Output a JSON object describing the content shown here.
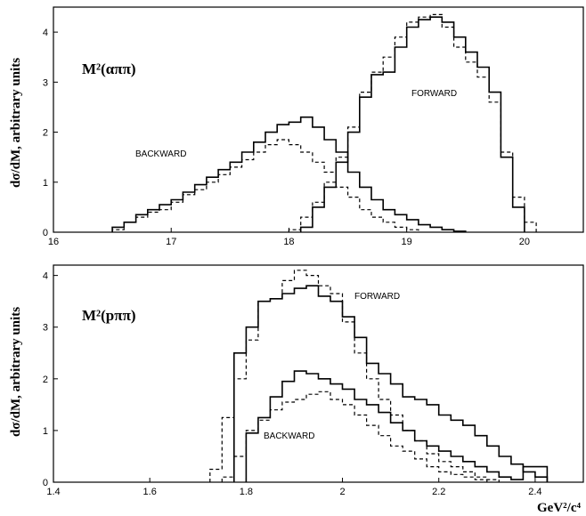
{
  "chart_data": [
    {
      "type": "step",
      "title": "M²(αππ)",
      "ylabel": "dσ/dM, arbitrary units",
      "xlim": [
        16,
        20.5
      ],
      "ylim": [
        0,
        4.5
      ],
      "xticks": [
        16,
        17,
        18,
        19,
        20
      ],
      "yticks": [
        0,
        1,
        2,
        3,
        4
      ],
      "annotations": [
        "BACKWARD",
        "FORWARD"
      ],
      "series": [
        {
          "name": "BACKWARD",
          "style": "solid",
          "x": [
            16.5,
            16.6,
            16.7,
            16.8,
            16.9,
            17.0,
            17.1,
            17.2,
            17.3,
            17.4,
            17.5,
            17.6,
            17.7,
            17.8,
            17.9,
            18.0,
            18.1,
            18.2,
            18.3,
            18.4,
            18.5,
            18.6,
            18.7,
            18.8,
            18.9,
            19.0,
            19.1,
            19.2,
            19.3,
            19.4,
            19.5
          ],
          "y": [
            0.1,
            0.2,
            0.35,
            0.45,
            0.55,
            0.65,
            0.8,
            0.95,
            1.1,
            1.25,
            1.4,
            1.6,
            1.8,
            2.0,
            2.15,
            2.2,
            2.3,
            2.1,
            1.85,
            1.6,
            1.2,
            0.9,
            0.65,
            0.45,
            0.35,
            0.25,
            0.15,
            0.1,
            0.05,
            0.02,
            0
          ]
        },
        {
          "name": "BACKWARD",
          "style": "dashed",
          "x": [
            16.5,
            16.6,
            16.7,
            16.8,
            16.9,
            17.0,
            17.1,
            17.2,
            17.3,
            17.4,
            17.5,
            17.6,
            17.7,
            17.8,
            17.9,
            18.0,
            18.1,
            18.2,
            18.3,
            18.4,
            18.5,
            18.6,
            18.7,
            18.8,
            18.9,
            19.0,
            19.1
          ],
          "y": [
            0.05,
            0.2,
            0.3,
            0.4,
            0.45,
            0.6,
            0.75,
            0.85,
            1.0,
            1.15,
            1.3,
            1.45,
            1.6,
            1.75,
            1.85,
            1.75,
            1.6,
            1.4,
            1.2,
            0.9,
            0.7,
            0.45,
            0.3,
            0.2,
            0.1,
            0.05,
            0
          ]
        },
        {
          "name": "FORWARD",
          "style": "solid",
          "x": [
            18.1,
            18.2,
            18.3,
            18.4,
            18.5,
            18.6,
            18.7,
            18.8,
            18.9,
            19.0,
            19.1,
            19.2,
            19.3,
            19.4,
            19.5,
            19.6,
            19.7,
            19.8,
            19.9,
            20.0
          ],
          "y": [
            0.1,
            0.5,
            0.9,
            1.4,
            2.0,
            2.7,
            3.15,
            3.2,
            3.7,
            4.1,
            4.25,
            4.3,
            4.2,
            3.9,
            3.6,
            3.3,
            2.8,
            1.5,
            0.5,
            0
          ]
        },
        {
          "name": "FORWARD",
          "style": "dashed",
          "x": [
            18.0,
            18.1,
            18.2,
            18.3,
            18.4,
            18.5,
            18.6,
            18.7,
            18.8,
            18.9,
            19.0,
            19.1,
            19.2,
            19.3,
            19.4,
            19.5,
            19.6,
            19.7,
            19.8,
            19.9,
            20.0,
            20.1
          ],
          "y": [
            0.05,
            0.3,
            0.6,
            1.0,
            1.5,
            2.1,
            2.8,
            3.2,
            3.5,
            3.9,
            4.2,
            4.3,
            4.35,
            4.1,
            3.7,
            3.4,
            3.1,
            2.6,
            1.6,
            0.7,
            0.2,
            0
          ]
        }
      ]
    },
    {
      "type": "step",
      "title": "M²(pππ)",
      "ylabel": "dσ/dM, arbitrary units",
      "xlabel": "GeV²/c⁴",
      "xlim": [
        1.4,
        2.5
      ],
      "ylim": [
        0,
        4.2
      ],
      "xticks": [
        1.4,
        1.6,
        1.8,
        2,
        2.2,
        2.4
      ],
      "yticks": [
        0,
        1,
        2,
        3,
        4
      ],
      "annotations": [
        "FORWARD",
        "BACKWARD"
      ],
      "series": [
        {
          "name": "FORWARD",
          "style": "solid",
          "x": [
            1.775,
            1.8,
            1.825,
            1.85,
            1.875,
            1.9,
            1.925,
            1.95,
            1.975,
            2.0,
            2.025,
            2.05,
            2.075,
            2.1,
            2.125,
            2.15,
            2.175,
            2.2,
            2.225,
            2.25,
            2.275,
            2.3,
            2.325,
            2.35,
            2.375,
            2.4,
            2.425
          ],
          "y": [
            2.5,
            3.0,
            3.5,
            3.55,
            3.65,
            3.75,
            3.8,
            3.6,
            3.5,
            3.2,
            2.8,
            2.3,
            2.1,
            1.9,
            1.65,
            1.6,
            1.5,
            1.3,
            1.2,
            1.1,
            0.9,
            0.7,
            0.5,
            0.35,
            0.2,
            0.1,
            0
          ]
        },
        {
          "name": "FORWARD",
          "style": "dashed",
          "x": [
            1.725,
            1.75,
            1.775,
            1.8,
            1.825,
            1.85,
            1.875,
            1.9,
            1.925,
            1.95,
            1.975,
            2.0,
            2.025,
            2.05,
            2.075,
            2.1,
            2.125,
            2.15,
            2.175,
            2.2,
            2.225,
            2.25,
            2.275,
            2.3,
            2.325
          ],
          "y": [
            0.25,
            1.25,
            2.0,
            2.75,
            3.5,
            3.55,
            3.9,
            4.1,
            4.0,
            3.8,
            3.65,
            3.1,
            2.5,
            2.0,
            1.6,
            1.3,
            1.0,
            0.8,
            0.55,
            0.4,
            0.3,
            0.2,
            0.1,
            0.05,
            0
          ]
        },
        {
          "name": "BACKWARD",
          "style": "solid",
          "x": [
            1.8,
            1.825,
            1.85,
            1.875,
            1.9,
            1.925,
            1.95,
            1.975,
            2.0,
            2.025,
            2.05,
            2.075,
            2.1,
            2.125,
            2.15,
            2.175,
            2.2,
            2.225,
            2.25,
            2.275,
            2.3,
            2.325,
            2.35,
            2.375,
            2.4,
            2.425
          ],
          "y": [
            0.95,
            1.25,
            1.65,
            1.95,
            2.15,
            2.1,
            2.0,
            1.9,
            1.8,
            1.6,
            1.5,
            1.35,
            1.15,
            1.0,
            0.8,
            0.7,
            0.6,
            0.5,
            0.4,
            0.3,
            0.2,
            0.1,
            0.05,
            0.3,
            0.3,
            0
          ]
        },
        {
          "name": "BACKWARD",
          "style": "dashed",
          "x": [
            1.75,
            1.775,
            1.8,
            1.825,
            1.85,
            1.875,
            1.9,
            1.925,
            1.95,
            1.975,
            2.0,
            2.025,
            2.05,
            2.075,
            2.1,
            2.125,
            2.15,
            2.175,
            2.2,
            2.225,
            2.25,
            2.275,
            2.3
          ],
          "y": [
            0.1,
            0.5,
            1.0,
            1.2,
            1.4,
            1.55,
            1.6,
            1.7,
            1.75,
            1.6,
            1.5,
            1.3,
            1.1,
            0.9,
            0.7,
            0.6,
            0.45,
            0.3,
            0.2,
            0.15,
            0.1,
            0.05,
            0
          ]
        }
      ]
    }
  ]
}
